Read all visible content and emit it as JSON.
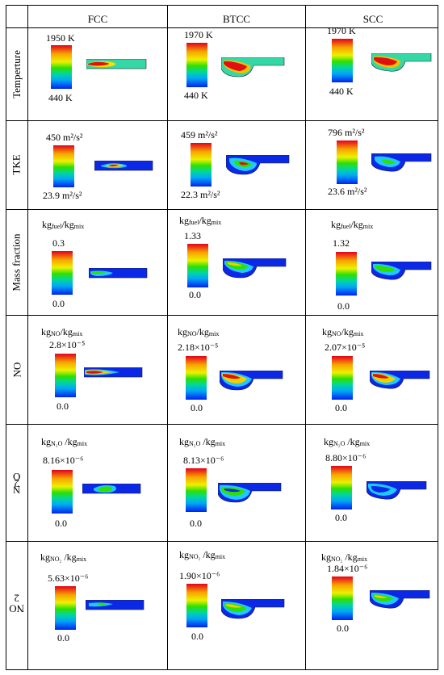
{
  "columns": [
    "FCC",
    "BTCC",
    "SCC"
  ],
  "rows": [
    {
      "label": "Temperture",
      "unit": null,
      "cells": [
        {
          "max": "1950 K",
          "min": "440 K"
        },
        {
          "max": "1970 K",
          "min": "440 K"
        },
        {
          "max": "1970 K",
          "min": "440 K"
        }
      ]
    },
    {
      "label": "TKE",
      "unit": null,
      "cells": [
        {
          "max": "450 m²/s²",
          "min": "23.9 m²/s²"
        },
        {
          "max": "459 m²/s²",
          "min": "22.3 m²/s²"
        },
        {
          "max": "796 m²/s²",
          "min": "23.6 m²/s²"
        }
      ]
    },
    {
      "label": "Mass fraction",
      "unit": {
        "num": "kg",
        "num_sub": "fuel",
        "den": "/kg",
        "den_sub": "mix"
      },
      "cells": [
        {
          "max": "0.3",
          "min": "0.0"
        },
        {
          "max": "1.33",
          "min": "0.0"
        },
        {
          "max": "1.32",
          "min": "0.0"
        }
      ]
    },
    {
      "label": "NO",
      "unit": {
        "num": "kg",
        "num_sub": "NO",
        "den": "/kg",
        "den_sub": "mix"
      },
      "cells": [
        {
          "max": "2.8×10⁻⁵",
          "min": "0.0"
        },
        {
          "max": "2.18×10⁻⁵",
          "min": "0.0"
        },
        {
          "max": "2.07×10⁻⁵",
          "min": "0.0"
        }
      ]
    },
    {
      "label_main": "N",
      "label_sub": "2",
      "label_tail": "O",
      "unit": {
        "num": "kg",
        "num_sub": "N₂O",
        "den": " /kg",
        "den_sub": "mix"
      },
      "cells": [
        {
          "max": "8.16×10⁻⁶",
          "min": "0.0"
        },
        {
          "max": "8.13×10⁻⁶",
          "min": "0.0"
        },
        {
          "max": "8.80×10⁻⁶",
          "min": "0.0"
        }
      ]
    },
    {
      "label_main": "NO",
      "label_sub": "2",
      "unit": {
        "num": "kg",
        "num_sub": "NO₂",
        "den": " /kg",
        "den_sub": "mix"
      },
      "cells": [
        {
          "max": "5.63×10⁻⁶",
          "min": "0.0"
        },
        {
          "max": "1.90×10⁻⁶",
          "min": "0.0"
        },
        {
          "max": "1.84×10⁻⁶",
          "min": "0.0"
        }
      ]
    }
  ],
  "colors": {
    "border": "#000000",
    "contour_background": "#0a28e6",
    "temperature_background": "#34d8a6"
  }
}
